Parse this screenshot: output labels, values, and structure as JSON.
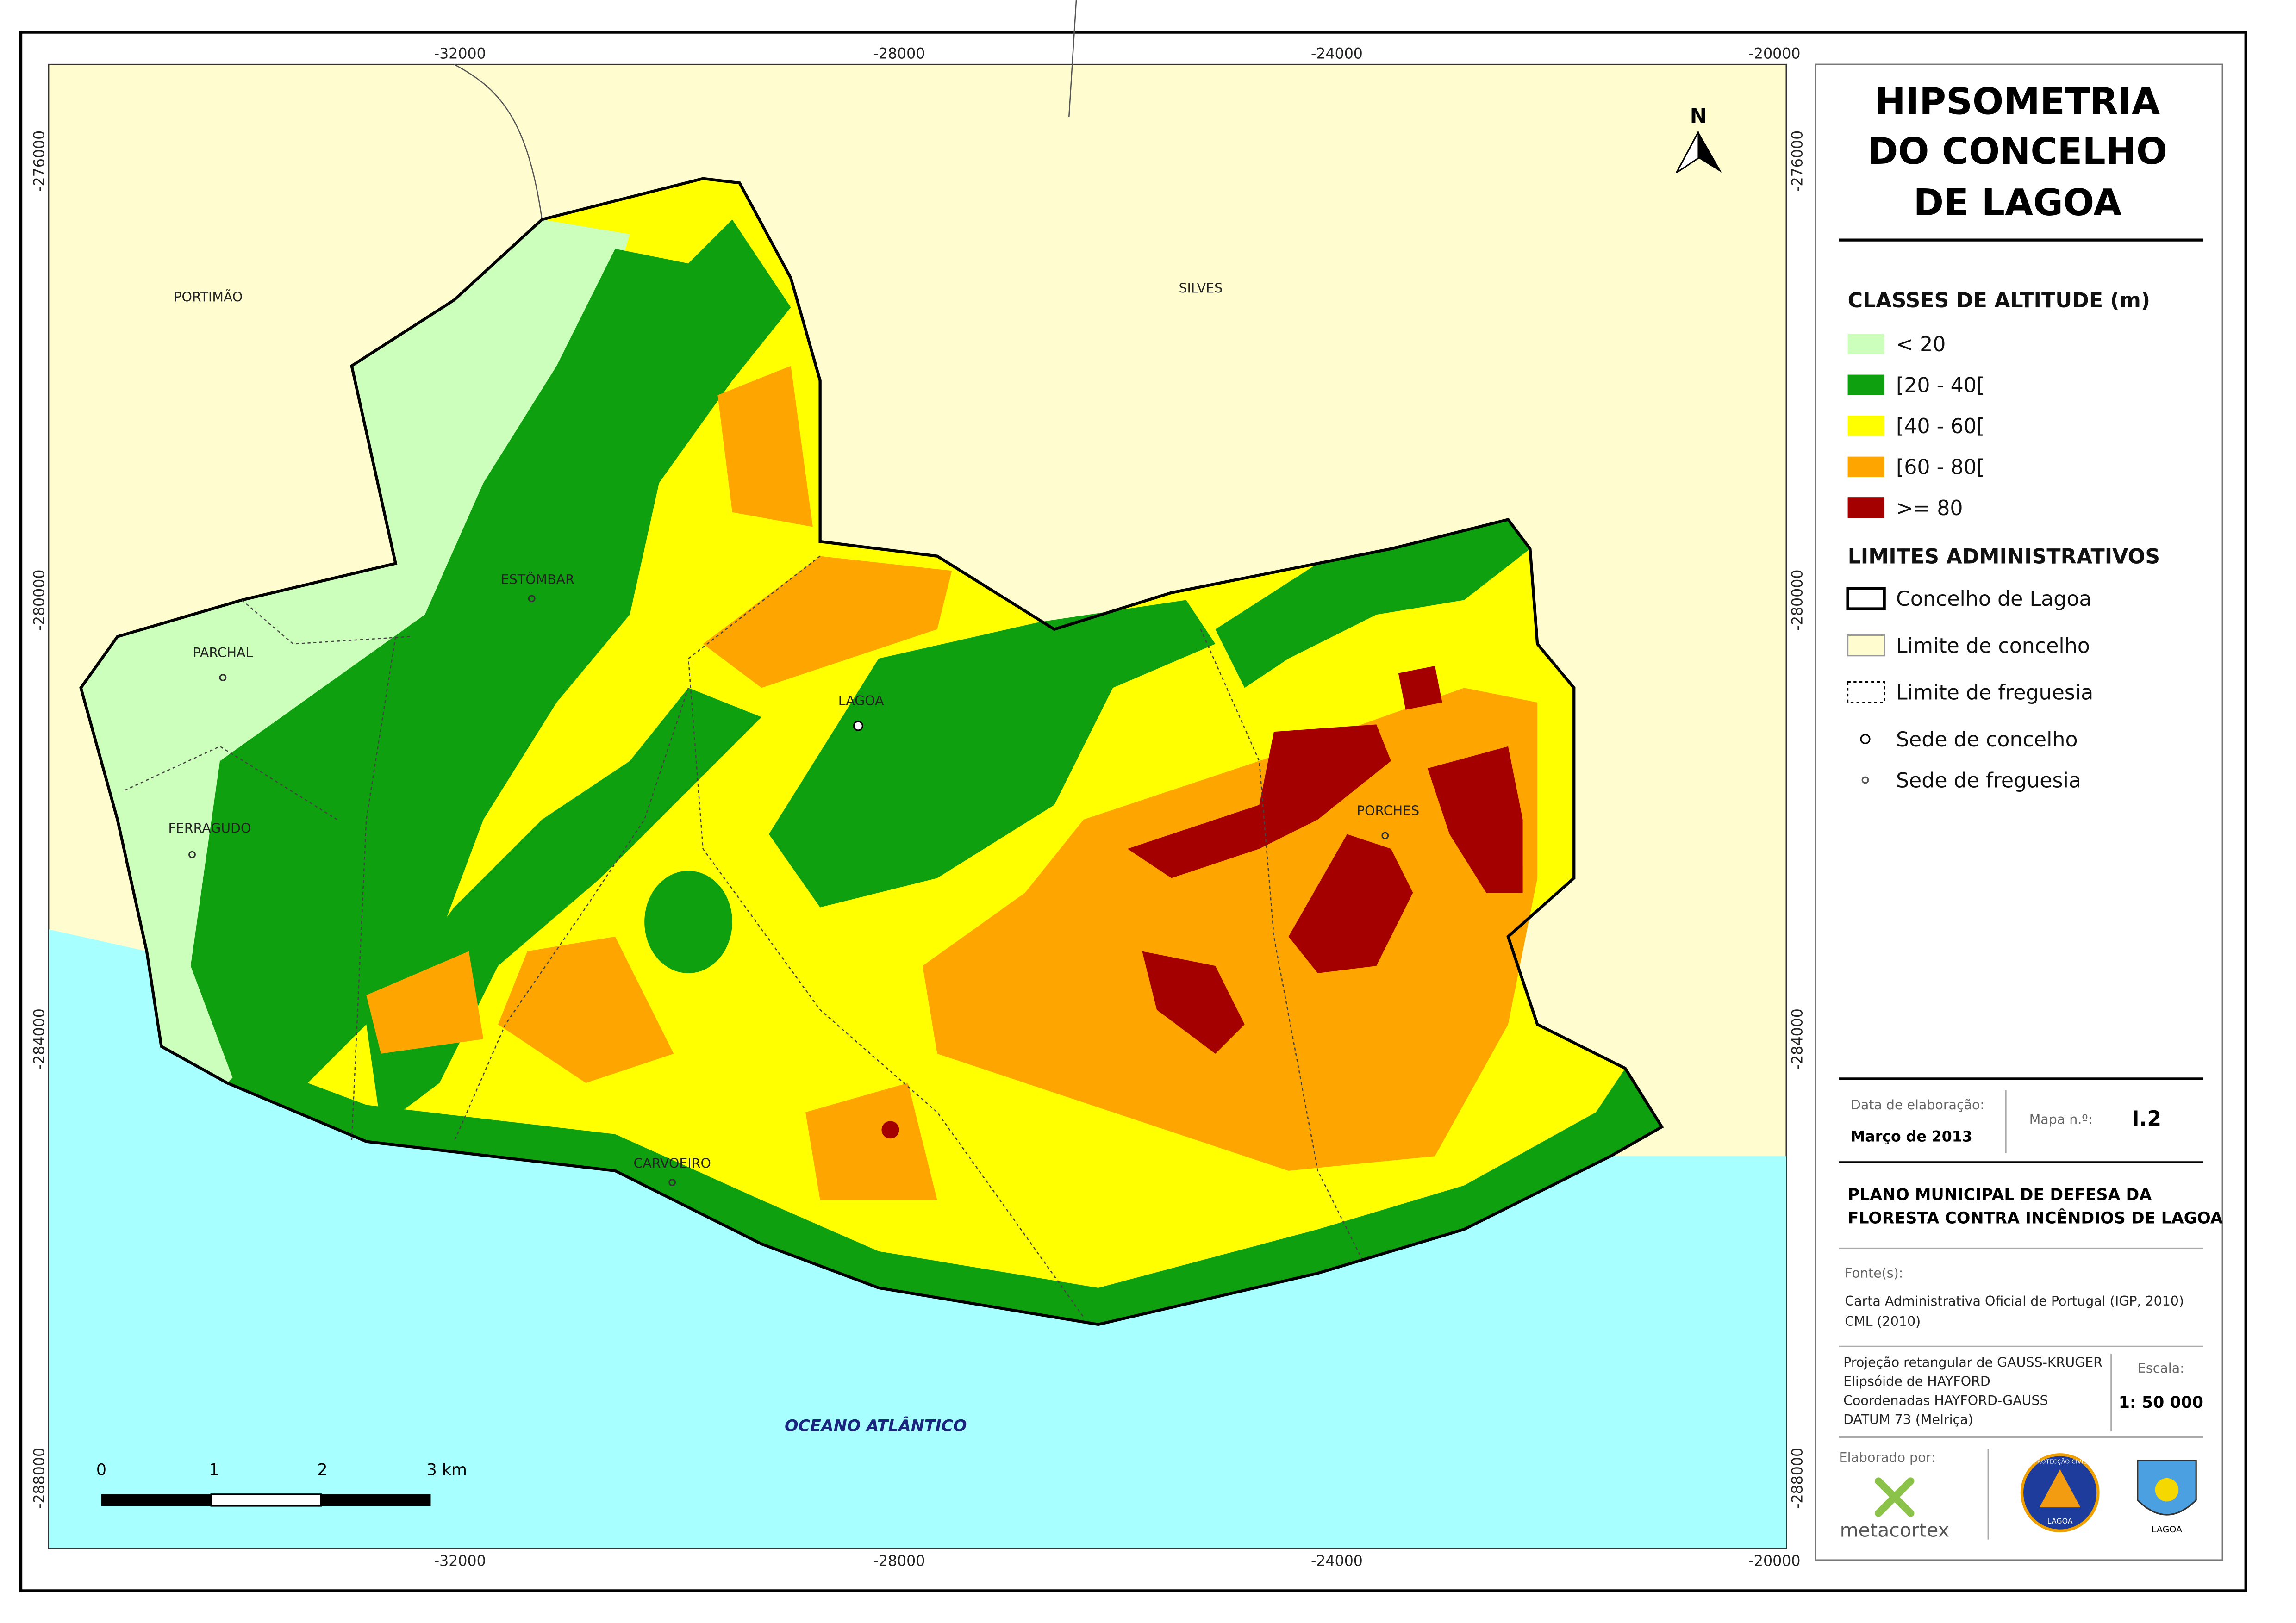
{
  "title": {
    "lines": [
      "HIPSOMETRIA",
      "DO CONCELHO",
      "DE LAGOA"
    ]
  },
  "legend": {
    "altitude_heading": "CLASSES DE ALTITUDE (m)",
    "altitude_classes": [
      {
        "label": "< 20",
        "color": "#ccffbb"
      },
      {
        "label": "[20 - 40[",
        "color": "#0ea00e"
      },
      {
        "label": "[40 - 60[",
        "color": "#ffff00"
      },
      {
        "label": "[60 - 80[",
        "color": "#ffa500"
      },
      {
        "label": ">= 80",
        "color": "#a50000"
      }
    ],
    "admin_heading": "LIMITES ADMINISTRATIVOS",
    "admin_items": [
      "Concelho de Lagoa",
      "Limite de concelho",
      "Limite de freguesia",
      "Sede de concelho",
      "Sede de freguesia"
    ]
  },
  "map": {
    "north": "N",
    "x_ticks": [
      "-32000",
      "-28000",
      "-24000",
      "-20000"
    ],
    "y_ticks": [
      "-276000",
      "-280000",
      "-284000",
      "-288000"
    ],
    "places": [
      "PORTIMÃO",
      "SILVES",
      "ESTÔMBAR",
      "PARCHAL",
      "LAGOA",
      "FERRAGUDO",
      "CARVOEIRO",
      "PORCHES"
    ],
    "ocean": "OCEANO ATLÂNTICO",
    "scale_labels": [
      "0",
      "1",
      "2",
      "3 km"
    ]
  },
  "info": {
    "date_label": "Data de elaboração:",
    "date": "Março de 2013",
    "map_no_label": "Mapa n.º:",
    "map_no": "I.2",
    "plan": [
      "PLANO MUNICIPAL DE DEFESA DA",
      "FLORESTA CONTRA INCÊNDIOS DE LAGOA"
    ],
    "sources_label": "Fonte(s):",
    "sources": [
      "Carta Administrativa Oficial de Portugal (IGP, 2010)",
      "CML (2010)"
    ],
    "projection": [
      "Projeção retangular de GAUSS-KRUGER",
      "Elipsóide de HAYFORD",
      "Coordenadas HAYFORD-GAUSS",
      "DATUM 73 (Melriça)"
    ],
    "scale_label": "Escala:",
    "scale": "1: 50 000",
    "made_by_label": "Elaborado por:",
    "company": "metacortex",
    "logos": [
      "PROTECÇÃO CIVIL",
      "LAGOA",
      "LAGOA"
    ]
  }
}
